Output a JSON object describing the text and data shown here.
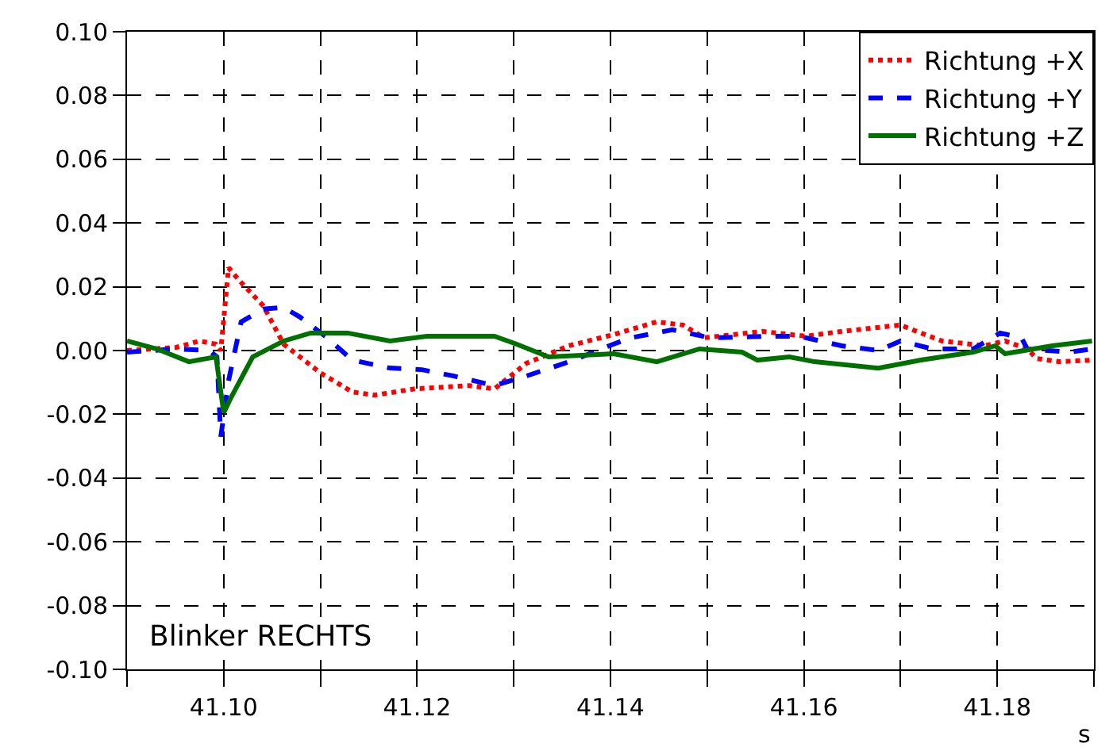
{
  "chart_data": {
    "type": "line",
    "xlabel": "s",
    "annotations": [
      "Blinker RECHTS"
    ],
    "xlim": [
      41.09,
      41.19
    ],
    "xticks": [
      {
        "value": 41.1,
        "label": "41.10"
      },
      {
        "value": 41.12,
        "label": "41.12"
      },
      {
        "value": 41.14,
        "label": "41.14"
      },
      {
        "value": 41.16,
        "label": "41.16"
      },
      {
        "value": 41.18,
        "label": "41.18"
      }
    ],
    "ylim": [
      -0.1,
      0.1
    ],
    "yticks": [
      {
        "value": -0.1,
        "label": "-0.10"
      },
      {
        "value": -0.08,
        "label": "-0.08"
      },
      {
        "value": -0.06,
        "label": "-0.06"
      },
      {
        "value": -0.04,
        "label": "-0.04"
      },
      {
        "value": -0.02,
        "label": "-0.02"
      },
      {
        "value": 0,
        "label": "0.00"
      },
      {
        "value": 0.02,
        "label": "0.02"
      },
      {
        "value": 0.04,
        "label": "0.04"
      },
      {
        "value": 0.06,
        "label": "0.06"
      },
      {
        "value": 0.08,
        "label": "0.08"
      },
      {
        "value": 0.1,
        "label": "0.10"
      }
    ],
    "grid": true,
    "legend": "top right",
    "marker": "none",
    "series": [
      {
        "name": "Richtung +X",
        "color": "#ff0000",
        "line_style": "dotted",
        "x": [
          41.09,
          41.0951,
          41.0975,
          41.0992,
          41.0997,
          41.1005,
          41.1016,
          41.1041,
          41.1062,
          41.11,
          41.1133,
          41.1156,
          41.1198,
          41.1254,
          41.128,
          41.1313,
          41.1357,
          41.1403,
          41.1448,
          41.1475,
          41.1497,
          41.1557,
          41.1602,
          41.1639,
          41.17,
          41.1721,
          41.1743,
          41.1787,
          41.1808,
          41.1831,
          41.1841,
          41.1864,
          41.1898
        ],
        "values": [
          0.0,
          0.001,
          0.003,
          0.002,
          0.0,
          0.026,
          0.022,
          0.014,
          0.002,
          -0.007,
          -0.013,
          -0.014,
          -0.012,
          -0.011,
          -0.012,
          -0.004,
          0.0015,
          0.005,
          0.009,
          0.008,
          0.004,
          0.006,
          0.0045,
          0.006,
          0.008,
          0.0055,
          0.003,
          0.0015,
          0.003,
          0.0005,
          -0.0025,
          -0.0035,
          -0.003
        ]
      },
      {
        "name": "Richtung +Y",
        "color": "#0000ff",
        "line_style": "dashed",
        "x": [
          41.09,
          41.0952,
          41.0985,
          41.0993,
          41.0997,
          41.1005,
          41.1018,
          41.1041,
          41.1062,
          41.1079,
          41.1107,
          41.1133,
          41.1172,
          41.1205,
          41.1238,
          41.128,
          41.1313,
          41.1362,
          41.1403,
          41.1421,
          41.1464,
          41.1503,
          41.1569,
          41.1595,
          41.1639,
          41.1677,
          41.17,
          41.1733,
          41.1775,
          41.1803,
          41.1825,
          41.1831,
          41.1874,
          41.1898
        ],
        "values": [
          -0.0005,
          0.0005,
          0.0,
          -0.002,
          -0.027,
          -0.0095,
          0.009,
          0.013,
          0.0135,
          0.0105,
          0.004,
          -0.003,
          -0.0055,
          -0.006,
          -0.008,
          -0.011,
          -0.008,
          -0.003,
          0.002,
          0.004,
          0.0065,
          0.004,
          0.0045,
          0.0045,
          0.0015,
          0.0,
          0.003,
          0.0005,
          0.0005,
          0.0055,
          0.004,
          0.0005,
          -0.0005,
          0.0005
        ]
      },
      {
        "name": "Richtung +Z",
        "color": "#007000",
        "line_style": "solid",
        "x": [
          41.09,
          41.0931,
          41.0964,
          41.0992,
          41.1,
          41.1008,
          41.103,
          41.1062,
          41.109,
          41.1128,
          41.1172,
          41.121,
          41.128,
          41.1303,
          41.1336,
          41.1403,
          41.1448,
          41.1492,
          41.1536,
          41.1552,
          41.1585,
          41.1611,
          41.1677,
          41.1721,
          41.1775,
          41.1798,
          41.1808,
          41.1857,
          41.1898
        ],
        "values": [
          0.003,
          0.0005,
          -0.0035,
          -0.002,
          -0.0195,
          -0.0145,
          -0.002,
          0.003,
          0.0055,
          0.0055,
          0.003,
          0.0045,
          0.0045,
          0.002,
          -0.002,
          -0.001,
          -0.0035,
          0.0005,
          -0.0005,
          -0.003,
          -0.002,
          -0.0035,
          -0.0055,
          -0.003,
          -0.0005,
          0.0015,
          -0.001,
          0.0015,
          0.003
        ]
      }
    ]
  }
}
